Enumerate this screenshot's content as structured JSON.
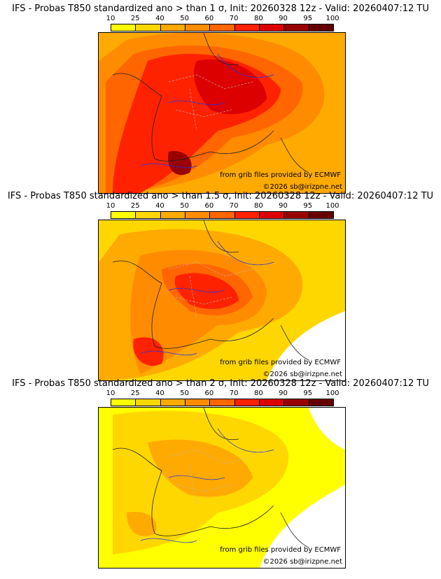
{
  "colorbar": {
    "ticks": [
      "10",
      "25",
      "40",
      "50",
      "60",
      "70",
      "80",
      "90",
      "95",
      "100"
    ],
    "colors": [
      "#ffff00",
      "#ffd700",
      "#ffaa00",
      "#ff8c00",
      "#ff6600",
      "#ff2200",
      "#dd0000",
      "#990000",
      "#660000"
    ]
  },
  "panels": [
    {
      "title": "IFS - Probas T850  standardized ano > than 1 σ, Init: 20260328 12z - Valid: 20260407:12 TU",
      "level": 3
    },
    {
      "title": "IFS - Probas T850  standardized ano > than 1.5 σ, Init: 20260328 12z - Valid: 20260407:12 TU",
      "level": 2
    },
    {
      "title": "IFS - Probas T850  standardized ano > than 2 σ, Init: 20260328 12z - Valid: 20260407:12 TU",
      "level": 1
    }
  ],
  "credits": {
    "source": "from grib files provided by ECMWF",
    "copyright": "©2026 sb@irizpne.net"
  }
}
